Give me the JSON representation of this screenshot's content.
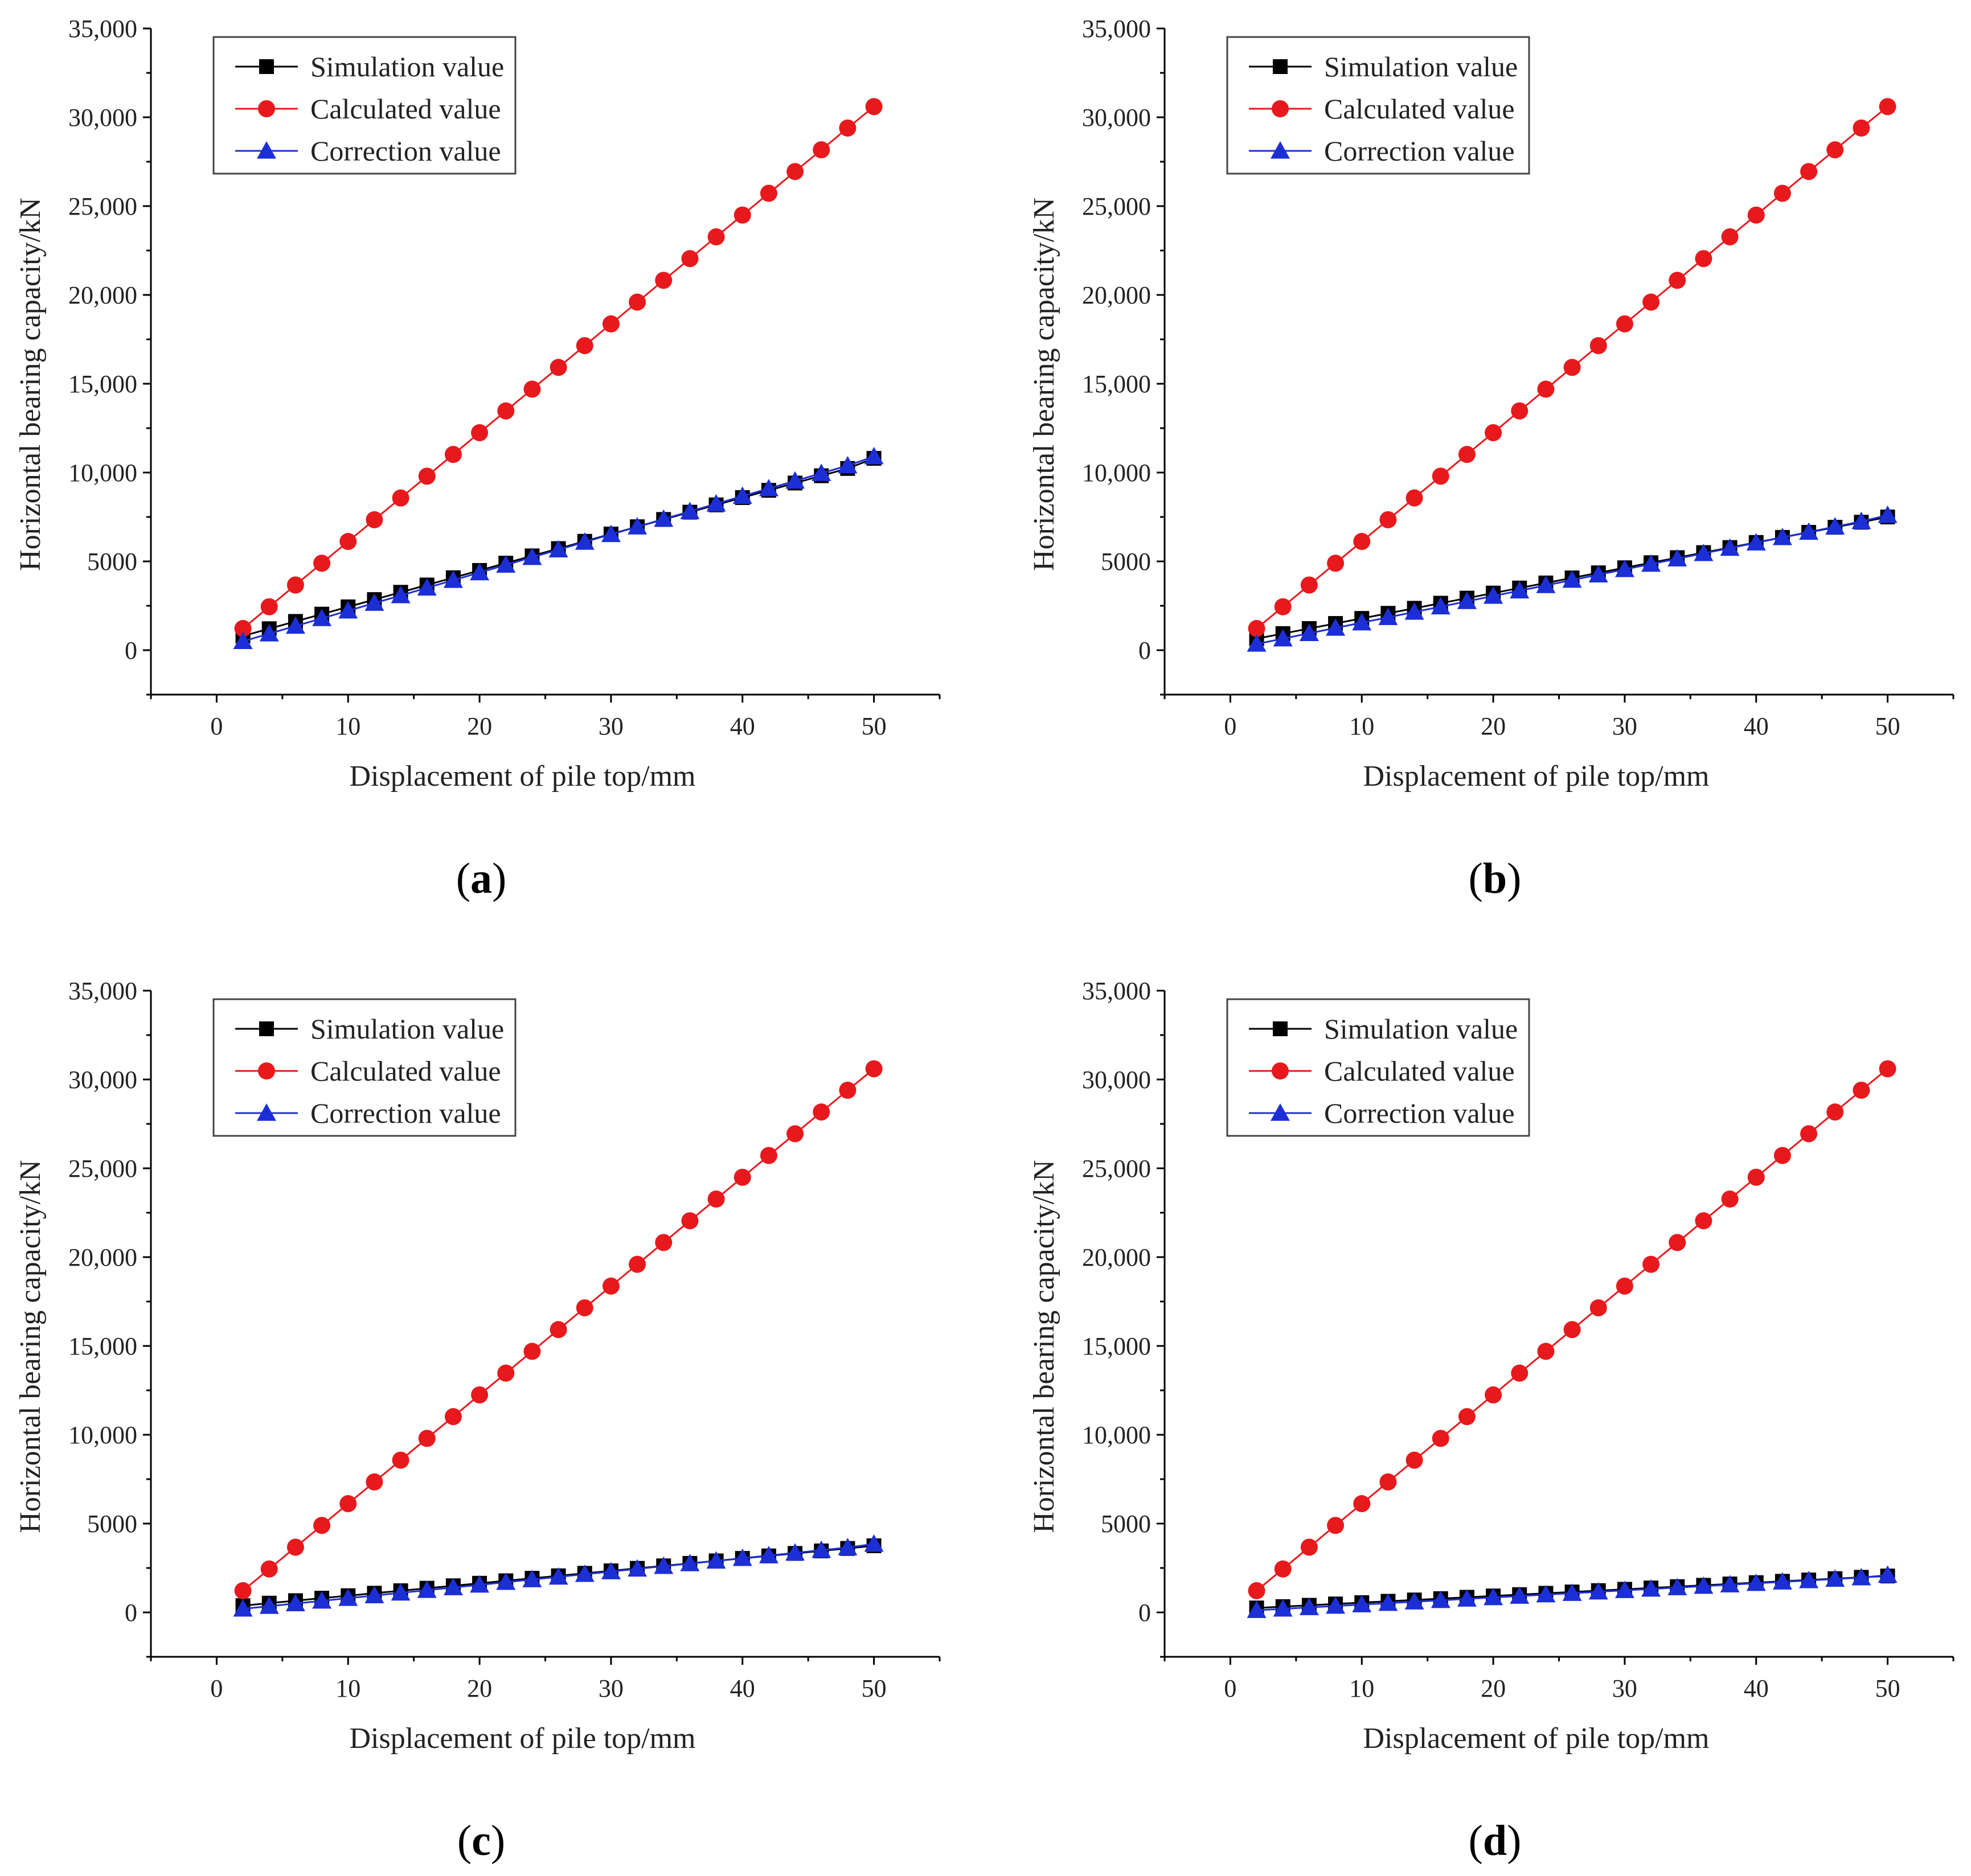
{
  "figure": {
    "panels": [
      {
        "id": "a",
        "label_open": "(",
        "label_letter": "a",
        "label_close": ")"
      },
      {
        "id": "b",
        "label_open": "(",
        "label_letter": "b",
        "label_close": ")"
      },
      {
        "id": "c",
        "label_open": "(",
        "label_letter": "c",
        "label_close": ")"
      },
      {
        "id": "d",
        "label_open": "(",
        "label_letter": "d",
        "label_close": ")"
      }
    ]
  },
  "chart_data": [
    {
      "panel": "a",
      "type": "line",
      "xlabel": "Displacement of pile top/mm",
      "ylabel": "Horizontal bearing capacity/kN",
      "xlim": [
        -5,
        55
      ],
      "ylim": [
        -2500,
        35000
      ],
      "xticks": [
        0,
        10,
        20,
        30,
        40,
        50
      ],
      "yticks": [
        0,
        5000,
        10000,
        15000,
        20000,
        25000,
        30000,
        35000
      ],
      "ytick_labels": [
        "0",
        "5000",
        "10,000",
        "15,000",
        "20,000",
        "25,000",
        "30,000",
        "35,000"
      ],
      "legend_position": "top-left",
      "x": [
        2,
        4,
        6,
        8,
        10,
        12,
        14,
        16,
        18,
        20,
        22,
        24,
        26,
        28,
        30,
        32,
        34,
        36,
        38,
        40,
        42,
        44,
        46,
        48,
        50
      ],
      "series": [
        {
          "name": "Simulation value",
          "color": "#000000",
          "marker": "square",
          "values": [
            800,
            1210,
            1620,
            2030,
            2440,
            2850,
            3260,
            3670,
            4080,
            4490,
            4900,
            5310,
            5720,
            6130,
            6540,
            6950,
            7360,
            7770,
            8180,
            8590,
            9000,
            9410,
            9820,
            10230,
            10800
          ]
        },
        {
          "name": "Calculated value",
          "color": "#e8191d",
          "marker": "circle",
          "values": [
            1220,
            2445,
            3670,
            4895,
            6120,
            7345,
            8570,
            9795,
            11020,
            12245,
            13470,
            14695,
            15920,
            17145,
            18370,
            19595,
            20820,
            22045,
            23270,
            24495,
            25720,
            26945,
            28170,
            29395,
            30600
          ]
        },
        {
          "name": "Correction value",
          "color": "#1c2fd6",
          "marker": "triangle",
          "values": [
            500,
            930,
            1360,
            1790,
            2220,
            2650,
            3080,
            3510,
            3940,
            4370,
            4800,
            5230,
            5660,
            6090,
            6520,
            6950,
            7380,
            7810,
            8240,
            8670,
            9100,
            9530,
            9960,
            10390,
            10900
          ]
        }
      ]
    },
    {
      "panel": "b",
      "type": "line",
      "xlabel": "Displacement of pile top/mm",
      "ylabel": "Horizontal bearing capacity/kN",
      "xlim": [
        -5,
        55
      ],
      "ylim": [
        -2500,
        35000
      ],
      "xticks": [
        0,
        10,
        20,
        30,
        40,
        50
      ],
      "yticks": [
        0,
        5000,
        10000,
        15000,
        20000,
        25000,
        30000,
        35000
      ],
      "ytick_labels": [
        "0",
        "5000",
        "10,000",
        "15,000",
        "20,000",
        "25,000",
        "30,000",
        "35,000"
      ],
      "legend_position": "top-left",
      "x": [
        2,
        4,
        6,
        8,
        10,
        12,
        14,
        16,
        18,
        20,
        22,
        24,
        26,
        28,
        30,
        32,
        34,
        36,
        38,
        40,
        42,
        44,
        46,
        48,
        50
      ],
      "series": [
        {
          "name": "Simulation value",
          "color": "#000000",
          "marker": "square",
          "values": [
            650,
            935,
            1220,
            1505,
            1790,
            2075,
            2360,
            2645,
            2930,
            3215,
            3500,
            3785,
            4070,
            4355,
            4640,
            4925,
            5210,
            5495,
            5780,
            6065,
            6350,
            6635,
            6920,
            7205,
            7500
          ]
        },
        {
          "name": "Calculated value",
          "color": "#e8191d",
          "marker": "circle",
          "values": [
            1220,
            2445,
            3670,
            4895,
            6120,
            7345,
            8570,
            9795,
            11020,
            12245,
            13470,
            14695,
            15920,
            17145,
            18370,
            19595,
            20820,
            22045,
            23270,
            24495,
            25720,
            26945,
            28170,
            29395,
            30600
          ]
        },
        {
          "name": "Correction value",
          "color": "#1c2fd6",
          "marker": "triangle",
          "values": [
            350,
            650,
            950,
            1250,
            1550,
            1850,
            2150,
            2450,
            2750,
            3050,
            3350,
            3650,
            3950,
            4250,
            4550,
            4850,
            5150,
            5450,
            5750,
            6050,
            6350,
            6650,
            6950,
            7250,
            7600
          ]
        }
      ]
    },
    {
      "panel": "c",
      "type": "line",
      "xlabel": "Displacement of pile top/mm",
      "ylabel": "Horizontal bearing capacity/kN",
      "xlim": [
        -5,
        55
      ],
      "ylim": [
        -2500,
        35000
      ],
      "xticks": [
        0,
        10,
        20,
        30,
        40,
        50
      ],
      "yticks": [
        0,
        5000,
        10000,
        15000,
        20000,
        25000,
        30000,
        35000
      ],
      "ytick_labels": [
        "0",
        "5000",
        "10,000",
        "15,000",
        "20,000",
        "25,000",
        "30,000",
        "35,000"
      ],
      "legend_position": "top-left",
      "x": [
        2,
        4,
        6,
        8,
        10,
        12,
        14,
        16,
        18,
        20,
        22,
        24,
        26,
        28,
        30,
        32,
        34,
        36,
        38,
        40,
        42,
        44,
        46,
        48,
        50
      ],
      "series": [
        {
          "name": "Simulation value",
          "color": "#000000",
          "marker": "square",
          "values": [
            380,
            520,
            660,
            800,
            940,
            1080,
            1220,
            1360,
            1500,
            1640,
            1780,
            1920,
            2060,
            2200,
            2340,
            2480,
            2620,
            2760,
            2900,
            3040,
            3180,
            3320,
            3460,
            3600,
            3750
          ]
        },
        {
          "name": "Calculated value",
          "color": "#e8191d",
          "marker": "circle",
          "values": [
            1220,
            2445,
            3670,
            4895,
            6120,
            7345,
            8570,
            9795,
            11020,
            12245,
            13470,
            14695,
            15920,
            17145,
            18370,
            19595,
            20820,
            22045,
            23270,
            24495,
            25720,
            26945,
            28170,
            29395,
            30600
          ]
        },
        {
          "name": "Correction value",
          "color": "#1c2fd6",
          "marker": "triangle",
          "values": [
            200,
            350,
            500,
            650,
            800,
            950,
            1100,
            1250,
            1400,
            1550,
            1700,
            1850,
            2000,
            2150,
            2300,
            2450,
            2600,
            2750,
            2900,
            3050,
            3200,
            3350,
            3500,
            3650,
            3850
          ]
        }
      ]
    },
    {
      "panel": "d",
      "type": "line",
      "xlabel": "Displacement of pile top/mm",
      "ylabel": "Horizontal bearing capacity/kN",
      "xlim": [
        -5,
        55
      ],
      "ylim": [
        -2500,
        35000
      ],
      "xticks": [
        0,
        10,
        20,
        30,
        40,
        50
      ],
      "yticks": [
        0,
        5000,
        10000,
        15000,
        20000,
        25000,
        30000,
        35000
      ],
      "ytick_labels": [
        "0",
        "5000",
        "10,000",
        "15,000",
        "20,000",
        "25,000",
        "30,000",
        "35,000"
      ],
      "legend_position": "top-left",
      "x": [
        2,
        4,
        6,
        8,
        10,
        12,
        14,
        16,
        18,
        20,
        22,
        24,
        26,
        28,
        30,
        32,
        34,
        36,
        38,
        40,
        42,
        44,
        46,
        48,
        50
      ],
      "series": [
        {
          "name": "Simulation value",
          "color": "#000000",
          "marker": "square",
          "values": [
            250,
            325,
            400,
            475,
            550,
            625,
            700,
            775,
            850,
            925,
            1000,
            1075,
            1150,
            1225,
            1300,
            1375,
            1450,
            1525,
            1600,
            1675,
            1750,
            1825,
            1900,
            1975,
            2050
          ]
        },
        {
          "name": "Calculated value",
          "color": "#e8191d",
          "marker": "circle",
          "values": [
            1220,
            2445,
            3670,
            4895,
            6120,
            7345,
            8570,
            9795,
            11020,
            12245,
            13470,
            14695,
            15920,
            17145,
            18370,
            19595,
            20820,
            22045,
            23270,
            24495,
            25720,
            26945,
            28170,
            29395,
            30600
          ]
        },
        {
          "name": "Correction value",
          "color": "#1c2fd6",
          "marker": "triangle",
          "values": [
            120,
            200,
            280,
            360,
            440,
            520,
            600,
            680,
            760,
            840,
            920,
            1000,
            1080,
            1160,
            1240,
            1320,
            1400,
            1480,
            1560,
            1640,
            1720,
            1800,
            1880,
            1960,
            2100
          ]
        }
      ]
    }
  ]
}
